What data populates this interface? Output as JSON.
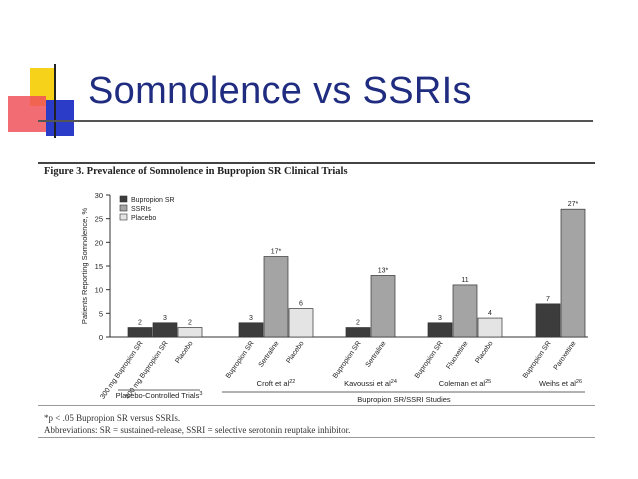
{
  "slide": {
    "title": "Somnolence vs SSRIs",
    "figure_caption": "Figure 3. Prevalence of Somnolence in Bupropion SR Clinical Trials",
    "footnote": "*p < .05 Bupropion SR versus SSRIs.",
    "abbreviations": "Abbreviations: SR = sustained-release, SSRI = selective serotonin reuptake inhibitor.",
    "deco_colors": {
      "yellow": "#f6d21a",
      "red": "#f0525a",
      "blue": "#2b3dc8"
    }
  },
  "chart_data": {
    "type": "bar",
    "title": "Figure 3. Prevalence of Somnolence in Bupropion SR Clinical Trials",
    "ylabel": "Patients Reporting Somnolence, %",
    "xlabel": "",
    "ylim": [
      0,
      30
    ],
    "yticks": [
      "0",
      "5",
      "10",
      "15",
      "20",
      "25",
      "30"
    ],
    "legend": [
      {
        "name": "Bupropion SR",
        "color": "#3c3c3c"
      },
      {
        "name": "SSRIs",
        "color": "#a4a4a4"
      },
      {
        "name": "Placebo",
        "color": "#e4e4e4"
      }
    ],
    "groups": [
      {
        "name": "Placebo-Controlled Trials",
        "sup": "3",
        "bars": [
          {
            "category": "300 mg Bupropion SR",
            "value": 2,
            "label": "2",
            "series": "Bupropion SR"
          },
          {
            "category": "400 mg Bupropion SR",
            "value": 3,
            "label": "3",
            "series": "Bupropion SR"
          },
          {
            "category": "Placebo",
            "value": 2,
            "label": "2",
            "series": "Placebo"
          }
        ]
      },
      {
        "name": "Croft et al",
        "sup": "22",
        "bars": [
          {
            "category": "Bupropion SR",
            "value": 3,
            "label": "3",
            "series": "Bupropion SR"
          },
          {
            "category": "Sertraline",
            "value": 17,
            "label": "17*",
            "series": "SSRIs"
          },
          {
            "category": "Placebo",
            "value": 6,
            "label": "6",
            "series": "Placebo"
          }
        ]
      },
      {
        "name": "Kavoussi et al",
        "sup": "24",
        "bars": [
          {
            "category": "Bupropion SR",
            "value": 2,
            "label": "2",
            "series": "Bupropion SR"
          },
          {
            "category": "Sertraline",
            "value": 13,
            "label": "13*",
            "series": "SSRIs"
          }
        ]
      },
      {
        "name": "Coleman et al",
        "sup": "25",
        "bars": [
          {
            "category": "Bupropion SR",
            "value": 3,
            "label": "3",
            "series": "Bupropion SR"
          },
          {
            "category": "Fluoxetine",
            "value": 11,
            "label": "11",
            "series": "SSRIs"
          },
          {
            "category": "Placebo",
            "value": 4,
            "label": "4",
            "series": "Placebo"
          }
        ]
      },
      {
        "name": "Weihs et al",
        "sup": "26",
        "bars": [
          {
            "category": "Bupropion SR",
            "value": 7,
            "label": "7",
            "series": "Bupropion SR"
          },
          {
            "category": "Paroxetine",
            "value": 27,
            "label": "27*",
            "series": "SSRIs"
          }
        ]
      }
    ],
    "section_label": "Bupropion SR/SSRI Studies"
  }
}
